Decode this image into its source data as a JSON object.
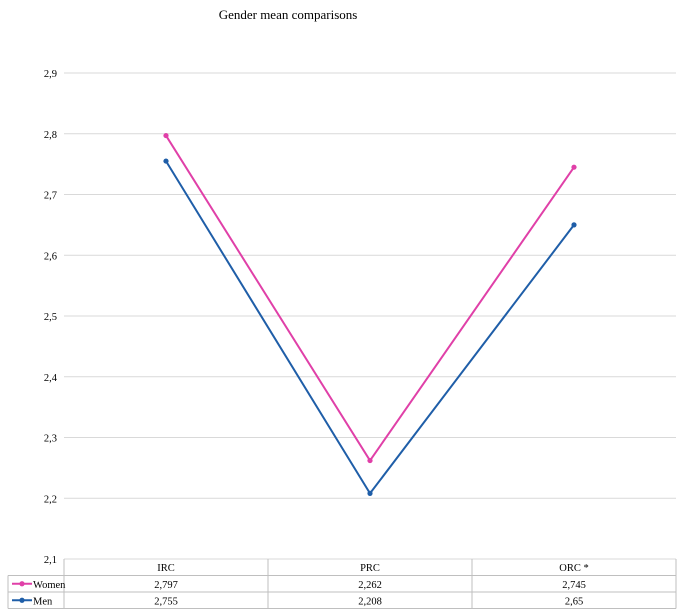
{
  "chart_data": {
    "type": "line",
    "title": "Gender mean comparisons",
    "categories": [
      "IRC",
      "PRC",
      "ORC *"
    ],
    "series": [
      {
        "name": "Women",
        "values": [
          2.797,
          2.262,
          2.745
        ],
        "labels": [
          "2,797",
          "2,262",
          "2,745"
        ],
        "color": "#e040a8"
      },
      {
        "name": "Men",
        "values": [
          2.755,
          2.208,
          2.65
        ],
        "labels": [
          "2,755",
          "2,208",
          "2,65"
        ],
        "color": "#1f5ea8"
      }
    ],
    "ylim": [
      2.1,
      2.9
    ],
    "yticks": [
      2.1,
      2.2,
      2.3,
      2.4,
      2.5,
      2.6,
      2.7,
      2.8,
      2.9
    ],
    "ytick_labels": [
      "2,1",
      "2,2",
      "2,3",
      "2,4",
      "2,5",
      "2,6",
      "2,7",
      "2,8",
      "2,9"
    ],
    "grid": true,
    "legend": "data-table"
  }
}
